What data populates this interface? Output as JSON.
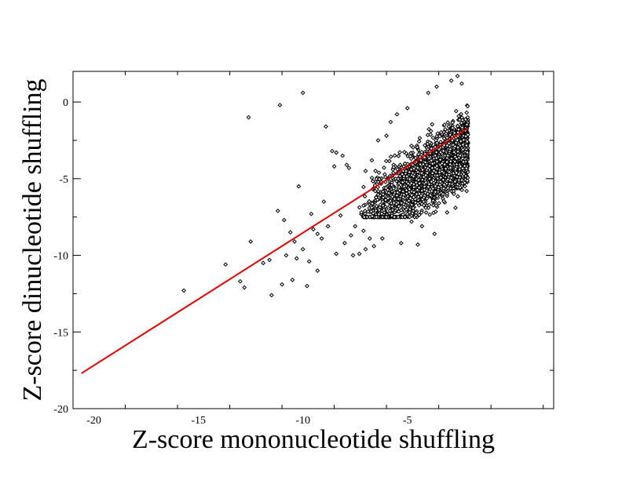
{
  "chart_data": {
    "type": "scatter",
    "title": "",
    "xlabel": "Z-score mononucleotide shuffling",
    "ylabel": "Z-score dinucleotide shuffling",
    "xlim": [
      -21,
      2
    ],
    "ylim": [
      -20,
      2
    ],
    "xticks": [
      -20,
      -15,
      -10,
      -5
    ],
    "yticks": [
      -20,
      -15,
      -10,
      -5,
      0
    ],
    "grid": false,
    "legend": "none",
    "colors": {
      "points": "#000000",
      "fit_line": "#e00000"
    },
    "fit_line": {
      "x": [
        -20.6,
        -2.1
      ],
      "y": [
        -17.7,
        -1.7
      ]
    },
    "cluster": {
      "x_range": [
        -7.5,
        -2.1
      ],
      "dense_center_y": -3.2,
      "upper_y": 1.5,
      "lower_y": -7.5,
      "approx_points": 2500
    },
    "series": [
      {
        "values": [
          [
            -15.7,
            -12.3
          ],
          [
            -13.7,
            -10.6
          ],
          [
            -13.0,
            -11.7
          ],
          [
            -12.8,
            -12.1
          ],
          [
            -12.6,
            -1.0
          ],
          [
            -12.5,
            -9.1
          ],
          [
            -11.9,
            -10.5
          ],
          [
            -11.6,
            -10.3
          ],
          [
            -11.5,
            -12.6
          ],
          [
            -11.2,
            -7.1
          ],
          [
            -11.1,
            -0.2
          ],
          [
            -11.0,
            -11.9
          ],
          [
            -10.9,
            -7.7
          ],
          [
            -10.8,
            -10.0
          ],
          [
            -10.6,
            -8.5
          ],
          [
            -10.5,
            -11.6
          ],
          [
            -10.4,
            -9.1
          ],
          [
            -10.3,
            -10.2
          ],
          [
            -10.2,
            -5.5
          ],
          [
            -10.0,
            -9.6
          ],
          [
            -10.0,
            0.6
          ],
          [
            -9.8,
            -12.0
          ],
          [
            -9.7,
            -10.4
          ],
          [
            -9.6,
            -7.3
          ],
          [
            -9.5,
            -8.3
          ],
          [
            -9.3,
            -8.6
          ],
          [
            -9.3,
            -11.0
          ],
          [
            -9.1,
            -8.9
          ],
          [
            -9.0,
            -6.5
          ],
          [
            -8.9,
            -1.6
          ],
          [
            -8.8,
            -8.1
          ],
          [
            -8.6,
            -3.2
          ],
          [
            -8.5,
            -4.2
          ],
          [
            -8.4,
            -3.3
          ],
          [
            -8.4,
            -9.9
          ],
          [
            -8.2,
            -7.4
          ],
          [
            -8.1,
            -3.5
          ],
          [
            -8.0,
            -9.2
          ],
          [
            -7.9,
            -4.1
          ],
          [
            -7.8,
            -4.3
          ],
          [
            -7.7,
            -8.7
          ],
          [
            -7.6,
            -10.0
          ],
          [
            -7.5,
            -8.1
          ],
          [
            -7.3,
            -9.9
          ],
          [
            -7.2,
            -7.2
          ],
          [
            -7.1,
            -8.4
          ],
          [
            -7.0,
            -9.6
          ],
          [
            -7.0,
            -4.5
          ],
          [
            -6.8,
            -8.9
          ],
          [
            -6.7,
            -3.8
          ],
          [
            -6.6,
            -9.4
          ],
          [
            -6.4,
            -2.5
          ],
          [
            -6.2,
            -8.9
          ],
          [
            -6.0,
            -2.2
          ],
          [
            -5.8,
            -1.3
          ],
          [
            -5.5,
            -0.8
          ],
          [
            -5.3,
            -9.2
          ],
          [
            -5.0,
            -0.4
          ],
          [
            -4.8,
            -7.8
          ],
          [
            -4.5,
            -9.3
          ],
          [
            -4.3,
            -8.1
          ],
          [
            -4.0,
            0.6
          ],
          [
            -3.7,
            -8.6
          ],
          [
            -3.6,
            1.0
          ],
          [
            -3.3,
            -6.3
          ],
          [
            -3.1,
            -7.2
          ],
          [
            -2.9,
            1.4
          ],
          [
            -2.7,
            -6.9
          ],
          [
            -2.6,
            1.7
          ],
          [
            -2.4,
            1.2
          ],
          [
            -2.3,
            -4.7
          ]
        ]
      }
    ]
  }
}
